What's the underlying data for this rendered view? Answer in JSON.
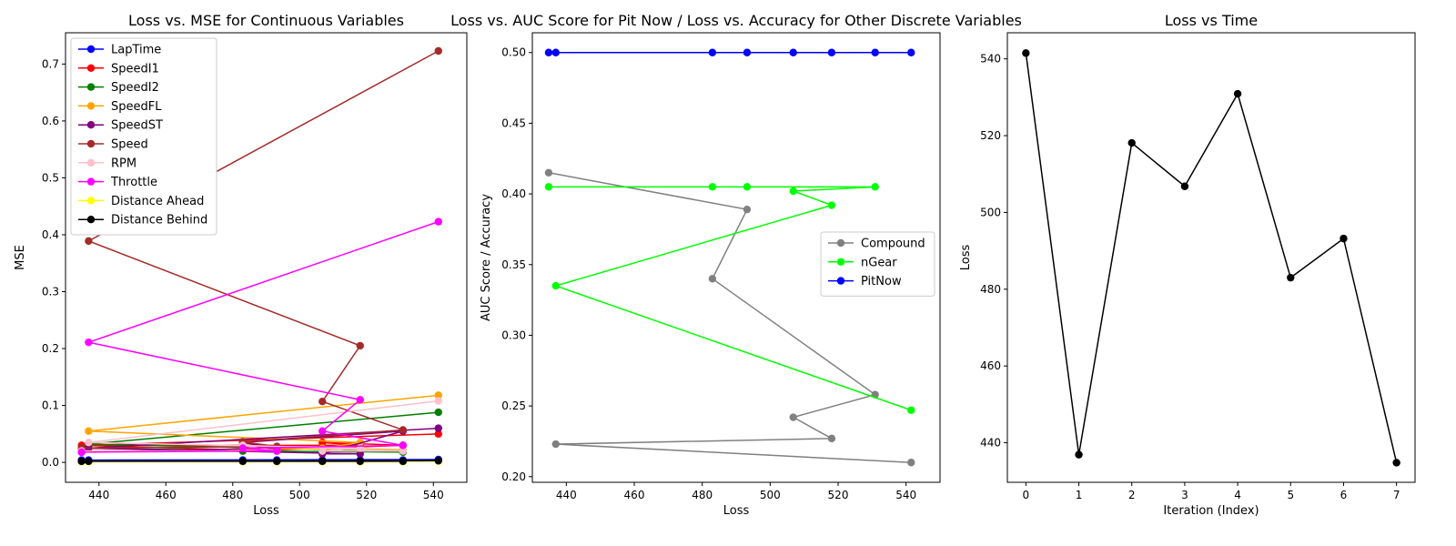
{
  "chart_data": [
    {
      "type": "line",
      "title": "Loss vs. MSE for Continuous Variables",
      "xlabel": "Loss",
      "ylabel": "MSE",
      "xlim": [
        430,
        550
      ],
      "ylim": [
        -0.035,
        0.755
      ],
      "xticks": [
        440,
        460,
        480,
        500,
        520,
        540
      ],
      "yticks": [
        0.0,
        0.1,
        0.2,
        0.3,
        0.4,
        0.5,
        0.6,
        0.7
      ],
      "ytick_decimals": 1,
      "legend_position": "upper-left",
      "x": [
        541.5,
        436.9,
        518.1,
        506.8,
        530.9,
        483.0,
        493.2,
        434.8
      ],
      "series": [
        {
          "name": "LapTime",
          "color": "#0000ff",
          "values": [
            0.005,
            0.004,
            0.004,
            0.004,
            0.004,
            0.004,
            0.004,
            0.004
          ]
        },
        {
          "name": "SpeedI1",
          "color": "#ff0000",
          "values": [
            0.05,
            0.03,
            0.03,
            0.035,
            0.03,
            0.02,
            0.02,
            0.03
          ]
        },
        {
          "name": "SpeedI2",
          "color": "#008000",
          "values": [
            0.088,
            0.032,
            0.022,
            0.02,
            0.018,
            0.02,
            0.02,
            0.025
          ]
        },
        {
          "name": "SpeedFL",
          "color": "#ffa500",
          "values": [
            0.118,
            0.055,
            0.035,
            0.025,
            0.022,
            0.025,
            0.022,
            0.02
          ]
        },
        {
          "name": "SpeedST",
          "color": "#800080",
          "values": [
            0.06,
            0.025,
            0.015,
            0.015,
            0.055,
            0.035,
            0.025,
            0.018
          ]
        },
        {
          "name": "Speed",
          "color": "#a52a2a",
          "values": [
            0.723,
            0.389,
            0.205,
            0.107,
            0.057,
            0.036,
            0.028,
            0.025
          ]
        },
        {
          "name": "RPM",
          "color": "#ffc0cb",
          "values": [
            0.108,
            0.035,
            0.025,
            0.02,
            0.02,
            0.03,
            0.02,
            0.02
          ]
        },
        {
          "name": "Throttle",
          "color": "#ff00ff",
          "values": [
            0.423,
            0.211,
            0.11,
            0.055,
            0.03,
            0.025,
            0.02,
            0.018
          ]
        },
        {
          "name": "Distance Ahead",
          "color": "#ffff00",
          "values": [
            0.002,
            0.001,
            0.001,
            0.001,
            0.001,
            0.001,
            0.001,
            0.001
          ]
        },
        {
          "name": "Distance Behind",
          "color": "#000000",
          "values": [
            0.003,
            0.002,
            0.002,
            0.002,
            0.002,
            0.002,
            0.002,
            0.002
          ]
        }
      ]
    },
    {
      "type": "line",
      "title": "Loss vs. AUC Score for Pit Now / Loss vs. Accuracy for Other Discrete Variables",
      "xlabel": "Loss",
      "ylabel": "AUC Score / Accuracy",
      "xlim": [
        430,
        550
      ],
      "ylim": [
        0.196,
        0.514
      ],
      "xticks": [
        440,
        460,
        480,
        500,
        520,
        540
      ],
      "yticks": [
        0.2,
        0.25,
        0.3,
        0.35,
        0.4,
        0.45,
        0.5
      ],
      "ytick_decimals": 2,
      "legend_position": "center-right",
      "x": [
        541.5,
        436.9,
        518.1,
        506.8,
        530.9,
        483.0,
        493.2,
        434.8
      ],
      "series": [
        {
          "name": "Compound",
          "color": "#808080",
          "values": [
            0.21,
            0.223,
            0.227,
            0.242,
            0.258,
            0.34,
            0.389,
            0.415
          ]
        },
        {
          "name": "nGear",
          "color": "#00ff00",
          "values": [
            0.247,
            0.335,
            0.392,
            0.402,
            0.405,
            0.405,
            0.405,
            0.405
          ]
        },
        {
          "name": "PitNow",
          "color": "#0000ff",
          "values": [
            0.5,
            0.5,
            0.5,
            0.5,
            0.5,
            0.5,
            0.5,
            0.5
          ]
        }
      ]
    },
    {
      "type": "line",
      "title": "Loss vs Time",
      "xlabel": "Iteration (Index)",
      "ylabel": "Loss",
      "xlim": [
        -0.35,
        7.35
      ],
      "ylim": [
        429.7,
        546.8
      ],
      "xticks": [
        0,
        1,
        2,
        3,
        4,
        5,
        6,
        7
      ],
      "yticks": [
        440,
        460,
        480,
        500,
        520,
        540
      ],
      "ytick_decimals": 0,
      "legend_position": "none",
      "x": [
        0,
        1,
        2,
        3,
        4,
        5,
        6,
        7
      ],
      "series": [
        {
          "color": "#000000",
          "values": [
            541.5,
            436.9,
            518.1,
            506.8,
            530.9,
            483.0,
            493.2,
            434.8
          ]
        }
      ]
    }
  ]
}
